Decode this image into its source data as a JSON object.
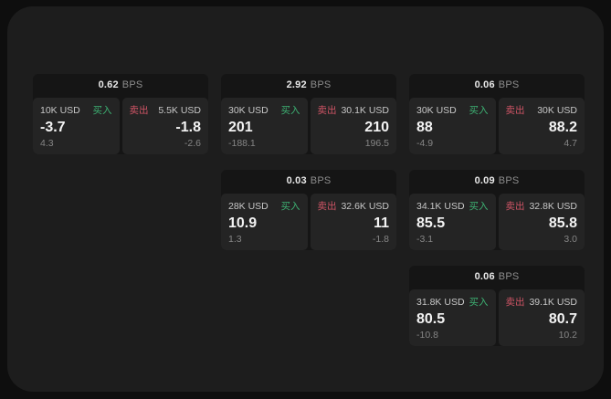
{
  "page": {
    "background": "#0e0e0e",
    "surface_color": "#1d1d1d"
  },
  "labels": {
    "bps": "BPS",
    "buy": "买入",
    "sell": "卖出"
  },
  "colors": {
    "buy": "#3db173",
    "sell": "#ce5465",
    "card_bg": "#151515",
    "panel_bg": "#242424",
    "value_text": "#f3f3f3",
    "muted_text": "#858585",
    "label_text": "#c7c7c7"
  },
  "cards": [
    {
      "bps": "0.62",
      "row": 1,
      "col": 1,
      "buy": {
        "amount": "10K USD",
        "value": "-3.7",
        "sub": "4.3"
      },
      "sell": {
        "amount": "5.5K USD",
        "value": "-1.8",
        "sub": "-2.6"
      }
    },
    {
      "bps": "2.92",
      "row": 1,
      "col": 2,
      "buy": {
        "amount": "30K USD",
        "value": "201",
        "sub": "-188.1"
      },
      "sell": {
        "amount": "30.1K USD",
        "value": "210",
        "sub": "196.5"
      }
    },
    {
      "bps": "0.06",
      "row": 1,
      "col": 3,
      "buy": {
        "amount": "30K USD",
        "value": "88",
        "sub": "-4.9"
      },
      "sell": {
        "amount": "30K USD",
        "value": "88.2",
        "sub": "4.7"
      }
    },
    {
      "bps": "0.03",
      "row": 2,
      "col": 2,
      "buy": {
        "amount": "28K USD",
        "value": "10.9",
        "sub": "1.3"
      },
      "sell": {
        "amount": "32.6K USD",
        "value": "11",
        "sub": "-1.8"
      }
    },
    {
      "bps": "0.09",
      "row": 2,
      "col": 3,
      "buy": {
        "amount": "34.1K USD",
        "value": "85.5",
        "sub": "-3.1"
      },
      "sell": {
        "amount": "32.8K USD",
        "value": "85.8",
        "sub": "3.0"
      }
    },
    {
      "bps": "0.06",
      "row": 3,
      "col": 3,
      "buy": {
        "amount": "31.8K USD",
        "value": "80.5",
        "sub": "-10.8"
      },
      "sell": {
        "amount": "39.1K USD",
        "value": "80.7",
        "sub": "10.2"
      }
    }
  ]
}
